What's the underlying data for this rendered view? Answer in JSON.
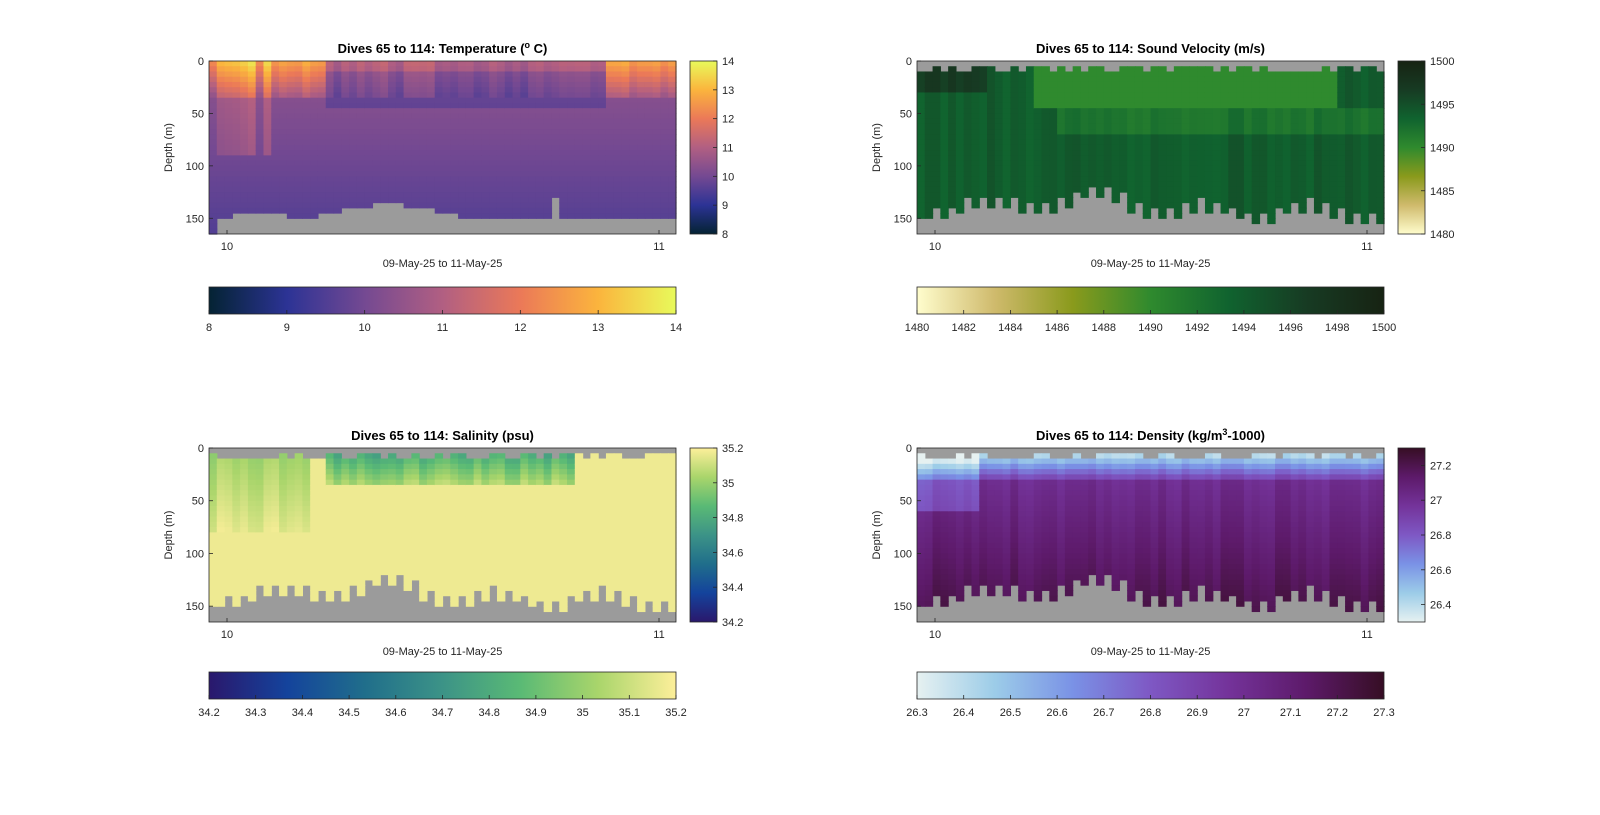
{
  "chart_data": [
    {
      "type": "heatmap",
      "title": "Dives 65 to 114: Temperature (",
      "title_sup": "o",
      "title_suffix": " C)",
      "xlabel": "09-May-25 to 11-May-25",
      "ylabel": "Depth (m)",
      "xticks": [
        "10",
        "11"
      ],
      "yticks": [
        0,
        50,
        100,
        150
      ],
      "ylim": [
        0,
        165
      ],
      "clim": [
        8,
        14
      ],
      "colormap": "thermal",
      "side_colorbar_ticks": [
        8,
        9,
        10,
        11,
        12,
        13,
        14
      ],
      "bottom_colorbar_ticks": [
        8,
        9,
        10,
        11,
        12,
        13,
        14
      ],
      "bottom_depth": "shallow"
    },
    {
      "type": "heatmap",
      "title": "Dives 65 to 114: Sound Velocity (m/s)",
      "title_sup": "",
      "title_suffix": "",
      "xlabel": "09-May-25 to 11-May-25",
      "ylabel": "Depth (m)",
      "xticks": [
        "10",
        "11"
      ],
      "yticks": [
        0,
        50,
        100,
        150
      ],
      "ylim": [
        0,
        165
      ],
      "clim": [
        1480,
        1500
      ],
      "colormap": "speed",
      "side_colorbar_ticks": [
        1480,
        1485,
        1490,
        1495,
        1500
      ],
      "bottom_colorbar_ticks": [
        1480,
        1482,
        1484,
        1486,
        1488,
        1490,
        1492,
        1494,
        1496,
        1498,
        1500
      ],
      "bottom_depth": "deep"
    },
    {
      "type": "heatmap",
      "title": "Dives 65 to 114: Salinity (psu)",
      "title_sup": "",
      "title_suffix": "",
      "xlabel": "09-May-25 to 11-May-25",
      "ylabel": "Depth (m)",
      "xticks": [
        "10",
        "11"
      ],
      "yticks": [
        0,
        50,
        100,
        150
      ],
      "ylim": [
        0,
        165
      ],
      "clim": [
        34.2,
        35.2
      ],
      "colormap": "haline",
      "side_colorbar_ticks": [
        34.2,
        34.4,
        34.6,
        34.8,
        35,
        35.2
      ],
      "bottom_colorbar_ticks": [
        34.2,
        34.3,
        34.4,
        34.5,
        34.6,
        34.7,
        34.8,
        34.9,
        35,
        35.1,
        35.2
      ],
      "bottom_depth": "deep"
    },
    {
      "type": "heatmap",
      "title": "Dives 65 to 114: Density (kg/m",
      "title_sup": "3",
      "title_suffix": "-1000)",
      "xlabel": "09-May-25 to 11-May-25",
      "ylabel": "Depth (m)",
      "xticks": [
        "10",
        "11"
      ],
      "yticks": [
        0,
        50,
        100,
        150
      ],
      "ylim": [
        0,
        165
      ],
      "clim": [
        26.3,
        27.3
      ],
      "colormap": "dense",
      "side_colorbar_ticks": [
        26.4,
        26.6,
        26.8,
        27,
        27.2
      ],
      "bottom_colorbar_ticks": [
        26.3,
        26.4,
        26.5,
        26.6,
        26.7,
        26.8,
        26.9,
        27,
        27.1,
        27.2,
        27.3
      ],
      "bottom_depth": "deep"
    }
  ],
  "colors": {
    "nodata": "#9b9b9b",
    "thermal": [
      "#042333",
      "#2c3395",
      "#744992",
      "#b15f82",
      "#eb7958",
      "#fbb43d",
      "#e8fa5b"
    ],
    "speed": [
      "#fffdcd",
      "#cfba6c",
      "#8a9a1c",
      "#2f8a2e",
      "#10632f",
      "#173b23",
      "#172313"
    ],
    "haline": [
      "#2a186c",
      "#14439c",
      "#206e8b",
      "#3c9387",
      "#5aba75",
      "#a9d56b",
      "#fdef9a"
    ],
    "dense": [
      "#e6f1f1",
      "#9ccce8",
      "#7a92e6",
      "#7e58c4",
      "#74339a",
      "#5d1a6a",
      "#360e24"
    ]
  }
}
